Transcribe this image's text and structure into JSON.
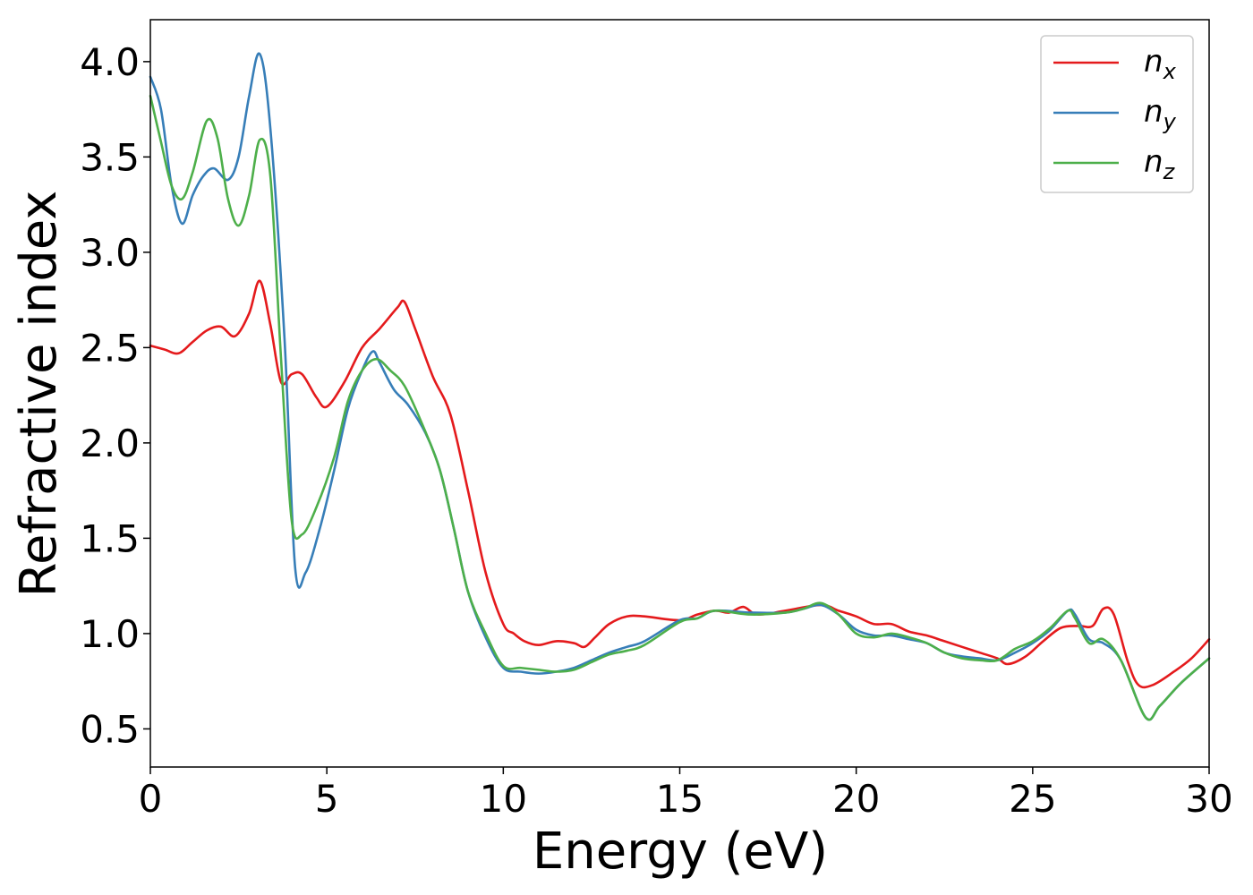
{
  "chart_data": {
    "type": "line",
    "xlabel": "Energy (eV)",
    "ylabel": "Refractive index",
    "xlim": [
      0,
      30
    ],
    "ylim": [
      0.3,
      4.22
    ],
    "xticks": [
      0,
      5,
      10,
      15,
      20,
      25,
      30
    ],
    "xtick_labels": [
      "0",
      "5",
      "10",
      "15",
      "20",
      "25",
      "30"
    ],
    "yticks": [
      0.5,
      1.0,
      1.5,
      2.0,
      2.5,
      3.0,
      3.5,
      4.0
    ],
    "ytick_labels": [
      "0.5",
      "1.0",
      "1.5",
      "2.0",
      "2.5",
      "3.0",
      "3.5",
      "4.0"
    ],
    "grid": false,
    "legend_position": "top-right",
    "series": [
      {
        "name": "n_x",
        "label_base": "n",
        "label_sub": "x",
        "color": "#e41a1c",
        "points": [
          [
            0,
            2.51
          ],
          [
            0.4,
            2.49
          ],
          [
            0.8,
            2.47
          ],
          [
            1.2,
            2.53
          ],
          [
            1.6,
            2.59
          ],
          [
            2.0,
            2.61
          ],
          [
            2.4,
            2.56
          ],
          [
            2.8,
            2.68
          ],
          [
            3.1,
            2.85
          ],
          [
            3.4,
            2.62
          ],
          [
            3.7,
            2.32
          ],
          [
            4.0,
            2.36
          ],
          [
            4.3,
            2.36
          ],
          [
            4.7,
            2.24
          ],
          [
            5.0,
            2.19
          ],
          [
            5.5,
            2.32
          ],
          [
            6.0,
            2.5
          ],
          [
            6.5,
            2.6
          ],
          [
            7.0,
            2.71
          ],
          [
            7.2,
            2.74
          ],
          [
            7.5,
            2.6
          ],
          [
            8.0,
            2.35
          ],
          [
            8.5,
            2.15
          ],
          [
            9.0,
            1.75
          ],
          [
            9.5,
            1.32
          ],
          [
            10.0,
            1.05
          ],
          [
            10.3,
            1.0
          ],
          [
            10.6,
            0.96
          ],
          [
            11.0,
            0.94
          ],
          [
            11.5,
            0.96
          ],
          [
            12.0,
            0.95
          ],
          [
            12.3,
            0.93
          ],
          [
            12.6,
            0.98
          ],
          [
            13.0,
            1.05
          ],
          [
            13.5,
            1.09
          ],
          [
            14.0,
            1.09
          ],
          [
            15.0,
            1.07
          ],
          [
            15.5,
            1.1
          ],
          [
            16.0,
            1.12
          ],
          [
            16.4,
            1.11
          ],
          [
            16.8,
            1.14
          ],
          [
            17.2,
            1.1
          ],
          [
            18.0,
            1.12
          ],
          [
            19.0,
            1.15
          ],
          [
            19.5,
            1.12
          ],
          [
            20.0,
            1.09
          ],
          [
            20.5,
            1.05
          ],
          [
            21.0,
            1.05
          ],
          [
            21.5,
            1.01
          ],
          [
            22.0,
            0.99
          ],
          [
            22.5,
            0.96
          ],
          [
            23.0,
            0.93
          ],
          [
            23.5,
            0.9
          ],
          [
            24.0,
            0.87
          ],
          [
            24.3,
            0.84
          ],
          [
            24.8,
            0.88
          ],
          [
            25.3,
            0.96
          ],
          [
            25.8,
            1.03
          ],
          [
            26.3,
            1.04
          ],
          [
            26.7,
            1.04
          ],
          [
            27.0,
            1.13
          ],
          [
            27.3,
            1.1
          ],
          [
            27.7,
            0.85
          ],
          [
            28.0,
            0.73
          ],
          [
            28.4,
            0.73
          ],
          [
            29.0,
            0.8
          ],
          [
            29.5,
            0.87
          ],
          [
            30.0,
            0.97
          ]
        ]
      },
      {
        "name": "n_y",
        "label_base": "n",
        "label_sub": "y",
        "color": "#377eb8",
        "points": [
          [
            0,
            3.92
          ],
          [
            0.3,
            3.75
          ],
          [
            0.6,
            3.35
          ],
          [
            0.9,
            3.15
          ],
          [
            1.2,
            3.3
          ],
          [
            1.5,
            3.4
          ],
          [
            1.8,
            3.44
          ],
          [
            2.2,
            3.38
          ],
          [
            2.5,
            3.5
          ],
          [
            2.8,
            3.82
          ],
          [
            3.1,
            4.04
          ],
          [
            3.4,
            3.65
          ],
          [
            3.8,
            2.55
          ],
          [
            4.1,
            1.35
          ],
          [
            4.4,
            1.32
          ],
          [
            4.8,
            1.55
          ],
          [
            5.2,
            1.85
          ],
          [
            5.6,
            2.18
          ],
          [
            6.0,
            2.38
          ],
          [
            6.3,
            2.48
          ],
          [
            6.5,
            2.42
          ],
          [
            6.9,
            2.28
          ],
          [
            7.3,
            2.2
          ],
          [
            7.8,
            2.05
          ],
          [
            8.2,
            1.86
          ],
          [
            8.6,
            1.55
          ],
          [
            9.0,
            1.22
          ],
          [
            9.5,
            0.98
          ],
          [
            10.0,
            0.82
          ],
          [
            10.5,
            0.8
          ],
          [
            11.0,
            0.79
          ],
          [
            11.5,
            0.8
          ],
          [
            12.0,
            0.82
          ],
          [
            12.5,
            0.86
          ],
          [
            13.0,
            0.9
          ],
          [
            13.5,
            0.93
          ],
          [
            14.0,
            0.96
          ],
          [
            15.0,
            1.07
          ],
          [
            15.5,
            1.08
          ],
          [
            16.0,
            1.12
          ],
          [
            17.0,
            1.11
          ],
          [
            18.0,
            1.11
          ],
          [
            18.5,
            1.13
          ],
          [
            19.0,
            1.15
          ],
          [
            19.5,
            1.1
          ],
          [
            20.0,
            1.02
          ],
          [
            20.5,
            0.99
          ],
          [
            21.0,
            0.99
          ],
          [
            21.5,
            0.97
          ],
          [
            22.0,
            0.95
          ],
          [
            22.5,
            0.9
          ],
          [
            23.0,
            0.88
          ],
          [
            23.5,
            0.87
          ],
          [
            24.0,
            0.86
          ],
          [
            24.5,
            0.9
          ],
          [
            25.0,
            0.95
          ],
          [
            25.5,
            1.02
          ],
          [
            26.0,
            1.12
          ],
          [
            26.2,
            1.1
          ],
          [
            26.6,
            0.97
          ],
          [
            27.0,
            0.95
          ],
          [
            27.5,
            0.86
          ],
          [
            28.2,
            0.56
          ],
          [
            28.6,
            0.62
          ],
          [
            29.2,
            0.74
          ],
          [
            30.0,
            0.87
          ]
        ]
      },
      {
        "name": "n_z",
        "label_base": "n",
        "label_sub": "z",
        "color": "#4daf4a",
        "points": [
          [
            0,
            3.82
          ],
          [
            0.3,
            3.58
          ],
          [
            0.6,
            3.35
          ],
          [
            0.9,
            3.28
          ],
          [
            1.2,
            3.42
          ],
          [
            1.6,
            3.69
          ],
          [
            1.9,
            3.6
          ],
          [
            2.2,
            3.28
          ],
          [
            2.5,
            3.14
          ],
          [
            2.8,
            3.3
          ],
          [
            3.1,
            3.59
          ],
          [
            3.4,
            3.4
          ],
          [
            3.7,
            2.45
          ],
          [
            4.0,
            1.6
          ],
          [
            4.3,
            1.52
          ],
          [
            4.7,
            1.66
          ],
          [
            5.2,
            1.92
          ],
          [
            5.6,
            2.22
          ],
          [
            6.0,
            2.38
          ],
          [
            6.4,
            2.44
          ],
          [
            6.8,
            2.38
          ],
          [
            7.2,
            2.3
          ],
          [
            7.7,
            2.1
          ],
          [
            8.2,
            1.86
          ],
          [
            8.6,
            1.55
          ],
          [
            9.0,
            1.22
          ],
          [
            9.5,
            1.0
          ],
          [
            10.0,
            0.83
          ],
          [
            10.5,
            0.82
          ],
          [
            11.0,
            0.81
          ],
          [
            11.5,
            0.8
          ],
          [
            12.0,
            0.81
          ],
          [
            12.5,
            0.85
          ],
          [
            13.0,
            0.89
          ],
          [
            13.5,
            0.91
          ],
          [
            14.0,
            0.94
          ],
          [
            15.0,
            1.06
          ],
          [
            15.5,
            1.08
          ],
          [
            16.0,
            1.12
          ],
          [
            17.0,
            1.1
          ],
          [
            18.0,
            1.11
          ],
          [
            18.5,
            1.13
          ],
          [
            19.0,
            1.16
          ],
          [
            19.5,
            1.1
          ],
          [
            20.0,
            1.0
          ],
          [
            20.5,
            0.98
          ],
          [
            21.0,
            1.0
          ],
          [
            21.5,
            0.98
          ],
          [
            22.0,
            0.95
          ],
          [
            22.5,
            0.9
          ],
          [
            23.0,
            0.87
          ],
          [
            23.5,
            0.86
          ],
          [
            24.0,
            0.86
          ],
          [
            24.5,
            0.92
          ],
          [
            25.0,
            0.96
          ],
          [
            25.5,
            1.03
          ],
          [
            26.0,
            1.12
          ],
          [
            26.2,
            1.08
          ],
          [
            26.6,
            0.95
          ],
          [
            27.0,
            0.97
          ],
          [
            27.5,
            0.86
          ],
          [
            28.2,
            0.56
          ],
          [
            28.6,
            0.62
          ],
          [
            29.2,
            0.74
          ],
          [
            30.0,
            0.87
          ]
        ]
      }
    ]
  }
}
